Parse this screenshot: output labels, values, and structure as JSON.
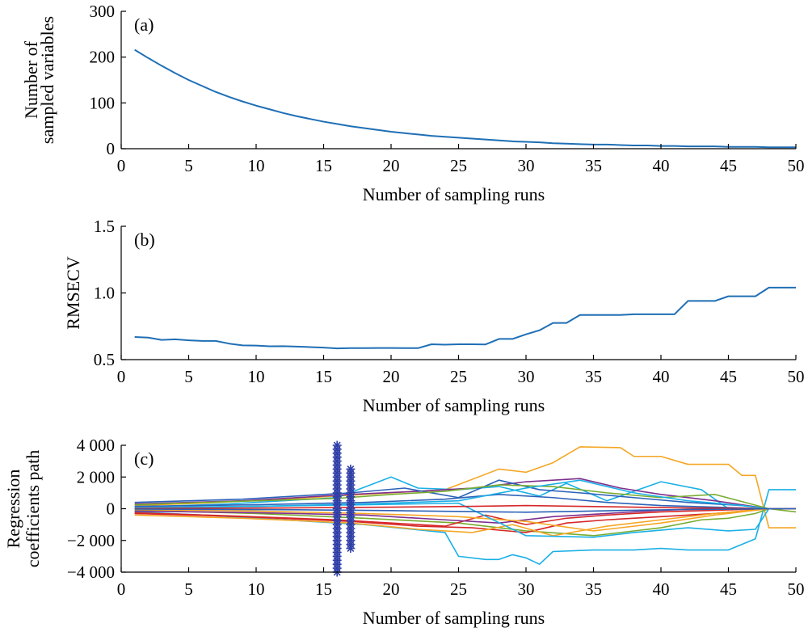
{
  "chart_data": [
    {
      "id": "a",
      "type": "line",
      "panel_label": "(a)",
      "xlabel": "Number of sampling runs",
      "ylabel_lines": [
        "Number of",
        "sampled variables"
      ],
      "xlim": [
        0,
        50
      ],
      "ylim": [
        0,
        300
      ],
      "xticks": [
        0,
        5,
        10,
        15,
        20,
        25,
        30,
        35,
        40,
        45,
        50
      ],
      "xtick_labels": [
        "0",
        "5",
        "10",
        "15",
        "20",
        "25",
        "30",
        "35",
        "40",
        "45",
        "50"
      ],
      "yticks": [
        0,
        100,
        200,
        300
      ],
      "ytick_labels": [
        "0",
        "100",
        "200",
        "300"
      ],
      "series": [
        {
          "color": "#1f6fb5",
          "x": [
            1,
            2,
            3,
            4,
            5,
            6,
            7,
            8,
            9,
            10,
            11,
            12,
            13,
            14,
            15,
            16,
            17,
            18,
            19,
            20,
            21,
            22,
            23,
            24,
            25,
            26,
            27,
            28,
            29,
            30,
            31,
            32,
            33,
            34,
            35,
            36,
            37,
            38,
            39,
            40,
            41,
            42,
            43,
            44,
            45,
            46,
            47,
            48,
            49,
            50
          ],
          "y": [
            216,
            198,
            181,
            165,
            150,
            137,
            124,
            113,
            103,
            94,
            86,
            78,
            71,
            65,
            59,
            54,
            49,
            45,
            41,
            37,
            34,
            31,
            28,
            26,
            24,
            22,
            20,
            18,
            16,
            15,
            14,
            12,
            11,
            10,
            9,
            9,
            8,
            7,
            7,
            6,
            6,
            5,
            5,
            5,
            4,
            4,
            4,
            3,
            3,
            3
          ]
        }
      ]
    },
    {
      "id": "b",
      "type": "line",
      "panel_label": "(b)",
      "xlabel": "Number of sampling runs",
      "ylabel_lines": [
        "RMSECV"
      ],
      "xlim": [
        0,
        50
      ],
      "ylim": [
        0.5,
        1.5
      ],
      "xticks": [
        0,
        5,
        10,
        15,
        20,
        25,
        30,
        35,
        40,
        45,
        50
      ],
      "xtick_labels": [
        "0",
        "5",
        "10",
        "15",
        "20",
        "25",
        "30",
        "35",
        "40",
        "45",
        "50"
      ],
      "yticks": [
        0.5,
        1.0,
        1.5
      ],
      "ytick_labels": [
        "0.5",
        "1.0",
        "1.5"
      ],
      "series": [
        {
          "color": "#1f6fb5",
          "x": [
            1,
            2,
            3,
            4,
            5,
            6,
            7,
            8,
            9,
            10,
            11,
            12,
            13,
            14,
            15,
            16,
            17,
            18,
            19,
            20,
            21,
            22,
            23,
            24,
            25,
            26,
            27,
            28,
            29,
            30,
            31,
            32,
            33,
            34,
            35,
            36,
            37,
            38,
            39,
            40,
            41,
            42,
            43,
            44,
            45,
            46,
            47,
            48,
            49,
            50
          ],
          "y": [
            0.67,
            0.665,
            0.648,
            0.652,
            0.645,
            0.64,
            0.64,
            0.62,
            0.607,
            0.605,
            0.6,
            0.601,
            0.598,
            0.594,
            0.59,
            0.584,
            0.586,
            0.586,
            0.587,
            0.587,
            0.586,
            0.586,
            0.615,
            0.612,
            0.615,
            0.615,
            0.614,
            0.655,
            0.655,
            0.69,
            0.72,
            0.775,
            0.775,
            0.835,
            0.835,
            0.835,
            0.835,
            0.84,
            0.84,
            0.84,
            0.84,
            0.94,
            0.94,
            0.94,
            0.975,
            0.975,
            0.975,
            1.04,
            1.04,
            1.04
          ]
        }
      ]
    },
    {
      "id": "c",
      "type": "line",
      "panel_label": "(c)",
      "xlabel": "Number of sampling runs",
      "ylabel_lines": [
        "Regression",
        "coefficients path"
      ],
      "xlim": [
        0,
        50
      ],
      "ylim": [
        -4000,
        4000
      ],
      "xticks": [
        0,
        5,
        10,
        15,
        20,
        25,
        30,
        35,
        40,
        45,
        50
      ],
      "xtick_labels": [
        "0",
        "5",
        "10",
        "15",
        "20",
        "25",
        "30",
        "35",
        "40",
        "45",
        "50"
      ],
      "yticks": [
        -4000,
        -2000,
        0,
        2000,
        4000
      ],
      "ytick_labels": [
        "−4 000",
        "−2 000",
        "0",
        "2 000",
        "4 000"
      ],
      "series": [
        {
          "color": "#f5a623",
          "x": [
            1,
            6,
            12,
            18,
            24,
            28,
            30,
            32,
            34,
            37,
            38,
            40,
            42,
            45,
            46,
            47,
            48,
            50
          ],
          "y": [
            200,
            350,
            600,
            900,
            1200,
            2500,
            2300,
            2900,
            3900,
            3850,
            3300,
            3300,
            2800,
            2800,
            2100,
            2100,
            -1200,
            -1200
          ]
        },
        {
          "color": "#1ab0e6",
          "x": [
            1,
            6,
            12,
            18,
            24,
            25,
            27,
            28,
            29,
            30,
            31,
            32,
            35,
            38,
            40,
            42,
            45,
            47,
            48,
            50
          ],
          "y": [
            -200,
            -400,
            -700,
            -1000,
            -1500,
            -3000,
            -3200,
            -3200,
            -2900,
            -3100,
            -3500,
            -2700,
            -2600,
            -2600,
            -2500,
            -2600,
            -2600,
            -1900,
            1200,
            1200
          ]
        },
        {
          "color": "#1ab0e6",
          "x": [
            1,
            8,
            16,
            20,
            22,
            25,
            28,
            31,
            33,
            36,
            40,
            43,
            45,
            48,
            50
          ],
          "y": [
            100,
            300,
            700,
            2000,
            1300,
            1200,
            1400,
            800,
            1600,
            500,
            1700,
            1200,
            0,
            0,
            0
          ]
        },
        {
          "color": "#77ac30",
          "x": [
            1,
            10,
            18,
            25,
            30,
            35,
            40,
            43,
            45,
            47,
            48,
            50
          ],
          "y": [
            -100,
            -300,
            -600,
            -900,
            -1400,
            -1700,
            -1200,
            -700,
            -600,
            -300,
            0,
            -200
          ]
        },
        {
          "color": "#7e2f8e",
          "x": [
            1,
            9,
            17,
            22,
            26,
            30,
            34,
            37,
            40,
            44,
            48,
            50
          ],
          "y": [
            300,
            500,
            900,
            1100,
            1300,
            1700,
            1900,
            1300,
            900,
            500,
            0,
            0
          ]
        },
        {
          "color": "#d62728",
          "x": [
            1,
            9,
            17,
            22,
            26,
            30,
            33,
            36,
            40,
            44,
            48,
            50
          ],
          "y": [
            -300,
            -500,
            -800,
            -1100,
            -1200,
            -1500,
            -900,
            -700,
            -500,
            -300,
            0,
            0
          ]
        },
        {
          "color": "#2c62b8",
          "x": [
            1,
            9,
            17,
            21,
            25,
            28,
            31,
            34,
            38,
            42,
            46,
            48,
            50
          ],
          "y": [
            400,
            600,
            1000,
            1300,
            700,
            1800,
            1200,
            1000,
            700,
            400,
            200,
            0,
            0
          ]
        },
        {
          "color": "#f5a623",
          "x": [
            1,
            9,
            17,
            22,
            26,
            29,
            32,
            36,
            40,
            44,
            48,
            50
          ],
          "y": [
            -400,
            -600,
            -900,
            -1300,
            -1500,
            -1000,
            -1700,
            -1100,
            -700,
            -300,
            0,
            0
          ]
        },
        {
          "color": "#77ac30",
          "x": [
            1,
            8,
            16,
            20,
            24,
            28,
            32,
            36,
            40,
            44,
            48,
            50
          ],
          "y": [
            250,
            450,
            650,
            900,
            1100,
            1500,
            1400,
            1000,
            700,
            900,
            0,
            0
          ]
        },
        {
          "color": "#d62728",
          "x": [
            1,
            8,
            16,
            20,
            24,
            27,
            30,
            33,
            36,
            40,
            44,
            48,
            50
          ],
          "y": [
            -250,
            -450,
            -700,
            -900,
            -1100,
            -400,
            -1000,
            -600,
            -400,
            -200,
            -100,
            0,
            0
          ]
        },
        {
          "color": "#2c62b8",
          "x": [
            1,
            10,
            18,
            24,
            28,
            32,
            36,
            40,
            44,
            48,
            50
          ],
          "y": [
            150,
            250,
            400,
            600,
            900,
            700,
            400,
            200,
            100,
            0,
            0
          ]
        },
        {
          "color": "#7e2f8e",
          "x": [
            1,
            10,
            18,
            24,
            28,
            32,
            36,
            40,
            44,
            48,
            50
          ],
          "y": [
            -150,
            -250,
            -400,
            -700,
            -900,
            -500,
            -300,
            -100,
            0,
            0,
            0
          ]
        },
        {
          "color": "#1ab0e6",
          "x": [
            1,
            10,
            18,
            25,
            30,
            34,
            38,
            42,
            46,
            48,
            50
          ],
          "y": [
            50,
            150,
            300,
            500,
            1300,
            1800,
            1000,
            500,
            200,
            0,
            0
          ]
        },
        {
          "color": "#f5a623",
          "x": [
            1,
            10,
            18,
            25,
            30,
            35,
            40,
            44,
            48,
            50
          ],
          "y": [
            -50,
            -150,
            -300,
            -500,
            -800,
            -1400,
            -900,
            -400,
            0,
            0
          ]
        },
        {
          "color": "#1ab0e6",
          "x": [
            1,
            10,
            18,
            25,
            30,
            35,
            38,
            42,
            45,
            47,
            48,
            50
          ],
          "y": [
            80,
            150,
            250,
            350,
            -1700,
            -1800,
            -1500,
            -1200,
            -1400,
            -1300,
            0,
            0
          ]
        },
        {
          "color": "#d62728",
          "x": [
            1,
            12,
            20,
            26,
            30,
            34,
            38,
            42,
            46,
            48,
            50
          ],
          "y": [
            20,
            50,
            100,
            150,
            200,
            150,
            100,
            50,
            20,
            0,
            0
          ]
        },
        {
          "color": "#2c62b8",
          "x": [
            1,
            12,
            20,
            26,
            30,
            34,
            38,
            42,
            46,
            48,
            50
          ],
          "y": [
            -20,
            -60,
            -120,
            -180,
            -220,
            -160,
            -100,
            -50,
            -20,
            0,
            0
          ]
        }
      ],
      "marker_runs": [
        {
          "x": 16,
          "ymin": -4000,
          "ymax": 4000,
          "color": "#2f3fa8"
        },
        {
          "x": 17,
          "ymin": -2500,
          "ymax": 2500,
          "color": "#2f3fa8"
        }
      ]
    }
  ]
}
